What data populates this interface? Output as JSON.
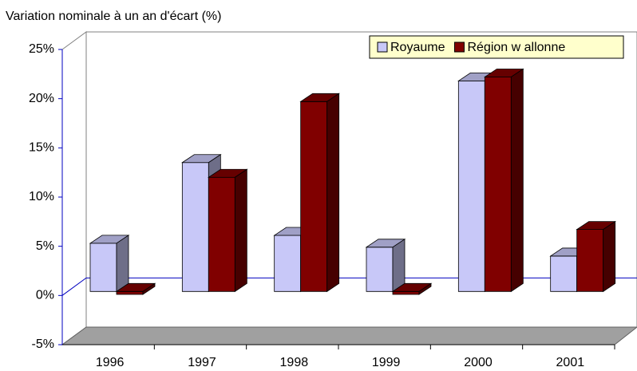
{
  "chart_data": {
    "type": "bar3d",
    "title": "Variation nominale à un an d'écart (%)",
    "categories": [
      "1996",
      "1997",
      "1998",
      "1999",
      "2000",
      "2001"
    ],
    "series": [
      {
        "name": "Royaume",
        "color": "#c8c8f8",
        "values": [
          4.9,
          13.1,
          5.7,
          4.5,
          21.4,
          3.6
        ]
      },
      {
        "name": "Région w allonne",
        "color": "#800000",
        "values": [
          -0.3,
          11.6,
          19.3,
          -0.3,
          21.8,
          6.3
        ]
      }
    ],
    "ylim": [
      -5,
      25
    ],
    "yticks": [
      {
        "value": -5,
        "label": "-5%"
      },
      {
        "value": 0,
        "label": "0%"
      },
      {
        "value": 5,
        "label": "5%"
      },
      {
        "value": 10,
        "label": "10%"
      },
      {
        "value": 15,
        "label": "15%"
      },
      {
        "value": 20,
        "label": "20%"
      },
      {
        "value": 25,
        "label": "25%"
      }
    ],
    "legend": "top-right"
  }
}
